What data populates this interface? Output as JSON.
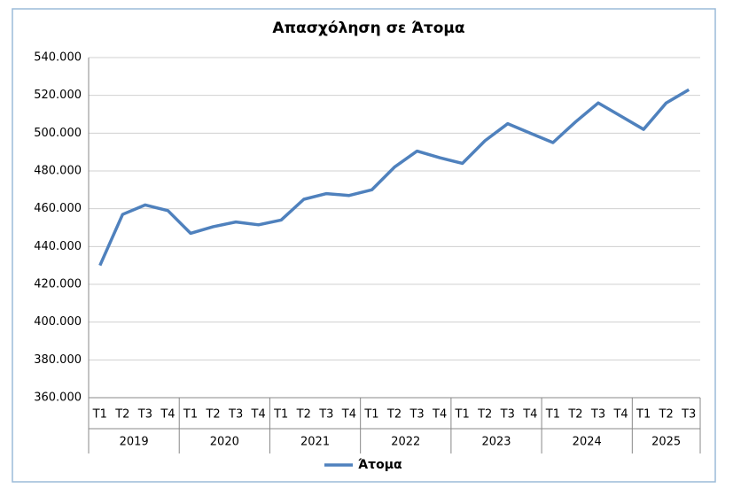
{
  "chart_data": {
    "type": "line",
    "title": "Απασχόληση σε Άτομα",
    "groups": [
      {
        "name": "2019",
        "categories": [
          "T1",
          "T2",
          "T3",
          "T4"
        ]
      },
      {
        "name": "2020",
        "categories": [
          "T1",
          "T2",
          "T3",
          "T4"
        ]
      },
      {
        "name": "2021",
        "categories": [
          "T1",
          "T2",
          "T3",
          "T4"
        ]
      },
      {
        "name": "2022",
        "categories": [
          "T1",
          "T2",
          "T3",
          "T4"
        ]
      },
      {
        "name": "2023",
        "categories": [
          "T1",
          "T2",
          "T3",
          "T4"
        ]
      },
      {
        "name": "2024",
        "categories": [
          "T1",
          "T2",
          "T3",
          "T4"
        ]
      },
      {
        "name": "2025",
        "categories": [
          "T1",
          "T2",
          "T3"
        ]
      }
    ],
    "series": [
      {
        "name": "Άτομα",
        "color": "#4f81bd",
        "values": [
          430000,
          457000,
          462000,
          459000,
          447000,
          450500,
          453000,
          451500,
          454000,
          465000,
          468000,
          467000,
          470000,
          482000,
          490500,
          487000,
          484000,
          496000,
          505000,
          500000,
          495000,
          506000,
          516000,
          509000,
          502000,
          516000,
          523000
        ]
      }
    ],
    "ylim": [
      360000,
      540000
    ],
    "yticks": [
      {
        "value": 360000,
        "label": "360.000"
      },
      {
        "value": 380000,
        "label": "380.000"
      },
      {
        "value": 400000,
        "label": "400.000"
      },
      {
        "value": 420000,
        "label": "420.000"
      },
      {
        "value": 440000,
        "label": "440.000"
      },
      {
        "value": 460000,
        "label": "460.000"
      },
      {
        "value": 480000,
        "label": "480.000"
      },
      {
        "value": 500000,
        "label": "500.000"
      },
      {
        "value": 520000,
        "label": "520.000"
      },
      {
        "value": 540000,
        "label": "540.000"
      }
    ],
    "grid": true,
    "legend": "bottom"
  }
}
